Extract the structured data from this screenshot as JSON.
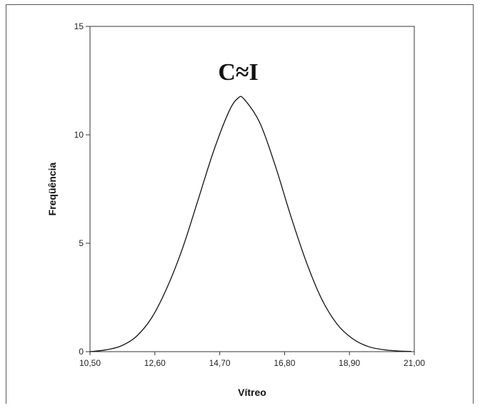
{
  "chart_data": {
    "type": "line",
    "title": "",
    "xlabel": "Vítreo",
    "ylabel": "Freqüência",
    "annotation": "C≈I",
    "xlim": [
      10.5,
      21.0
    ],
    "ylim": [
      0,
      15
    ],
    "xticks": [
      10.5,
      12.6,
      14.7,
      16.8,
      18.9,
      21.0
    ],
    "xtick_labels": [
      "10,50",
      "12,60",
      "14,70",
      "16,80",
      "18,90",
      "21,00"
    ],
    "yticks": [
      0,
      5,
      10,
      15
    ],
    "ytick_labels": [
      "0",
      "5",
      "10",
      "15"
    ],
    "grid": false,
    "legend": "none",
    "series": [
      {
        "x": [
          10.5,
          11.0,
          11.5,
          12.0,
          12.5,
          13.0,
          13.5,
          14.0,
          14.5,
          15.0,
          15.3,
          15.5,
          16.0,
          16.5,
          17.0,
          17.5,
          18.0,
          18.5,
          19.0,
          19.5,
          20.0,
          20.5,
          20.9
        ],
        "y": [
          0.0,
          0.08,
          0.26,
          0.7,
          1.57,
          2.97,
          4.78,
          7.0,
          9.24,
          11.08,
          11.7,
          11.63,
          10.55,
          8.57,
          6.26,
          4.15,
          2.43,
          1.27,
          0.6,
          0.24,
          0.09,
          0.03,
          0.01
        ]
      }
    ],
    "colors": {
      "line": "#111111",
      "axis": "#333333",
      "frame": "#555555"
    }
  }
}
